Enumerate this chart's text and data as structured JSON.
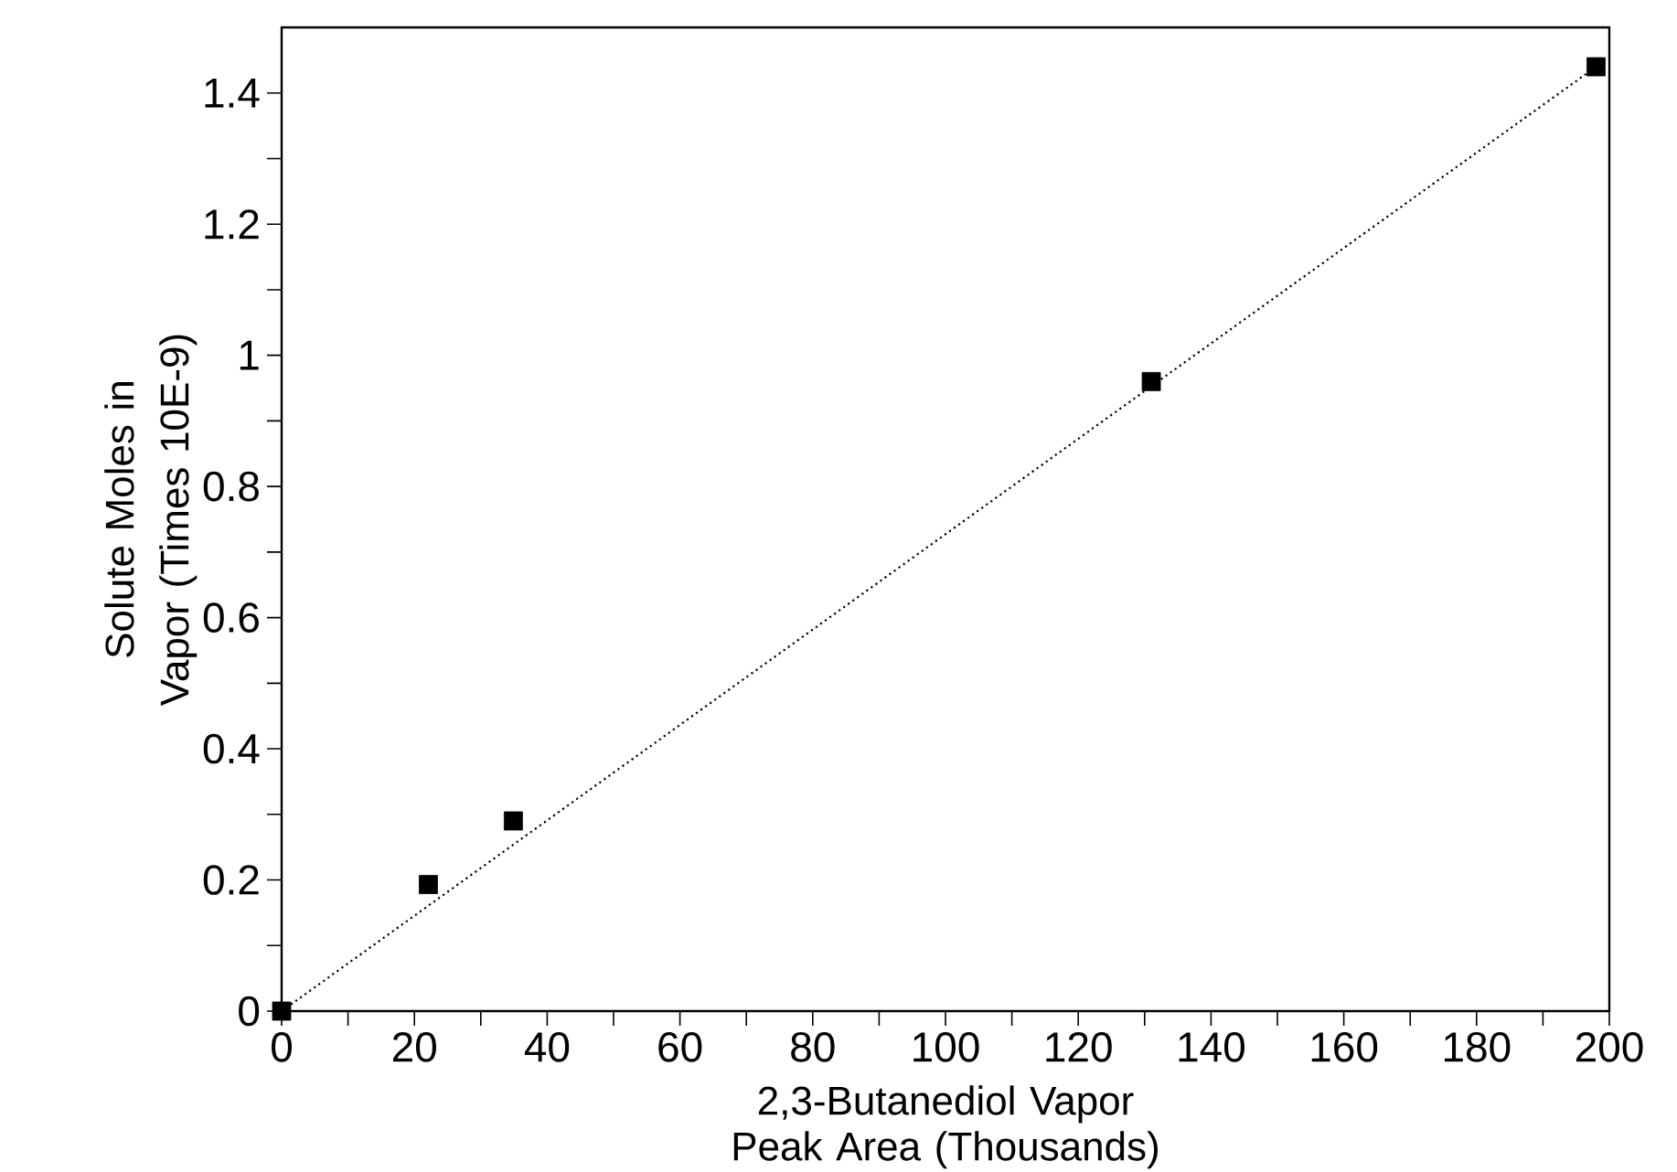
{
  "chart_data": {
    "type": "scatter",
    "xlabel": "2,3-Butanediol Vapor Peak Area (Thousands)",
    "ylabel": "Solute Moles in Vapor (Times 10E-9)",
    "xlim": [
      0,
      200
    ],
    "ylim": [
      0,
      1.5
    ],
    "xticks": [
      0,
      20,
      40,
      60,
      80,
      100,
      120,
      140,
      160,
      180,
      200
    ],
    "yticks": [
      0,
      0.2,
      0.4,
      0.6,
      0.8,
      1,
      1.2,
      1.4
    ],
    "series": [
      {
        "type": "scatter",
        "color": "#000000",
        "marker": "square",
        "x": [
          0,
          22.1,
          34.9,
          131,
          198
        ],
        "values": [
          0,
          0.193,
          0.29,
          0.96,
          1.44
        ]
      },
      {
        "type": "line",
        "color": "#000000",
        "line_style": "dotted",
        "marker": "none",
        "x": [
          0,
          198
        ],
        "values": [
          0,
          1.44
        ]
      }
    ]
  }
}
